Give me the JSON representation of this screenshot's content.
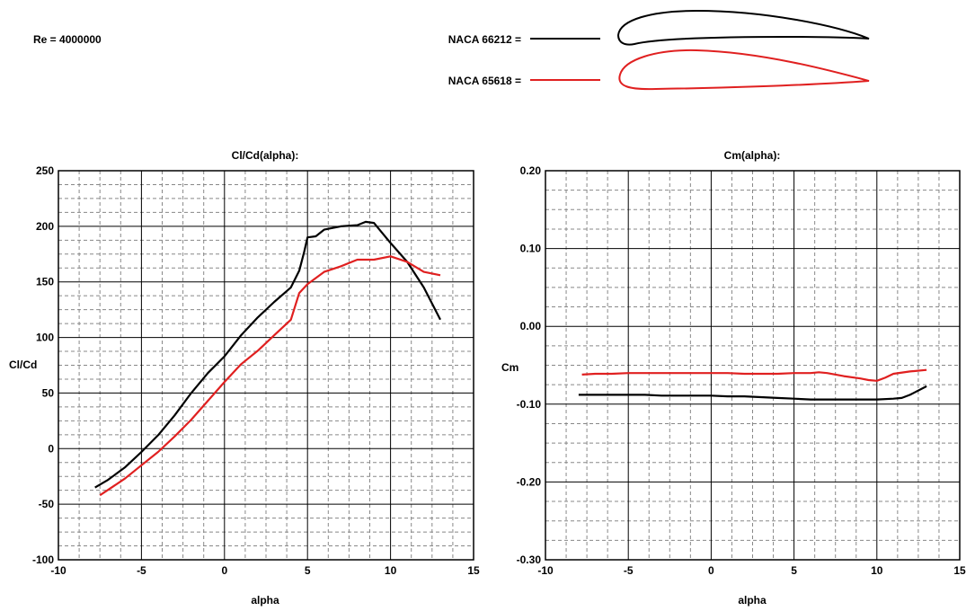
{
  "header": {
    "reynolds": "Re = 4000000",
    "legend": [
      {
        "label": "NACA 66212 =",
        "color": "#000000"
      },
      {
        "label": "NACA 65618 =",
        "color": "#e02020"
      }
    ]
  },
  "colors": {
    "grid_major": "#000000",
    "grid_minor": "#888888",
    "background": "#ffffff"
  },
  "chart_data": [
    {
      "type": "line",
      "title": "Cl/Cd(alpha):",
      "xlabel": "alpha",
      "ylabel": "Cl/Cd",
      "xlim": [
        -10,
        15
      ],
      "ylim": [
        -100,
        250
      ],
      "xticks": [
        -10,
        -5,
        0,
        5,
        10,
        15
      ],
      "xtick_labels": [
        "-10",
        "-5",
        "0",
        "5",
        "10",
        "15"
      ],
      "yticks": [
        -100,
        -50,
        0,
        50,
        100,
        150,
        200,
        250
      ],
      "ytick_labels": [
        "-100",
        "-50",
        "0",
        "50",
        "100",
        "150",
        "200",
        "250"
      ],
      "grid": true,
      "series": [
        {
          "name": "NACA 66212",
          "color": "#000000",
          "x": [
            -7.8,
            -7,
            -6,
            -5,
            -4,
            -3,
            -2,
            -1,
            0,
            1,
            2,
            3,
            4,
            4.5,
            4.8,
            5,
            5.5,
            6,
            7,
            8,
            8.5,
            9,
            10,
            11,
            12,
            13
          ],
          "y": [
            -35,
            -28,
            -17,
            -3,
            12,
            30,
            50,
            68,
            83,
            102,
            118,
            132,
            145,
            160,
            177,
            190,
            191,
            197,
            200,
            201,
            204,
            203,
            185,
            168,
            145,
            116
          ]
        },
        {
          "name": "NACA 65618",
          "color": "#e02020",
          "x": [
            -7.5,
            -7,
            -6,
            -5,
            -4,
            -3,
            -2,
            -1,
            0,
            1,
            2,
            3,
            4,
            4.5,
            5,
            6,
            7,
            8,
            9,
            10,
            11,
            12,
            13
          ],
          "y": [
            -42,
            -37,
            -27,
            -15,
            -3,
            11,
            26,
            43,
            60,
            76,
            88,
            102,
            116,
            140,
            148,
            159,
            164,
            170,
            170,
            173,
            168,
            159,
            156
          ]
        }
      ]
    },
    {
      "type": "line",
      "title": "Cm(alpha):",
      "xlabel": "alpha",
      "ylabel": "Cm",
      "xlim": [
        -10,
        15
      ],
      "ylim": [
        -0.3,
        0.2
      ],
      "xticks": [
        -10,
        -5,
        0,
        5,
        10,
        15
      ],
      "xtick_labels": [
        "-10",
        "-5",
        "0",
        "5",
        "10",
        "15"
      ],
      "yticks": [
        -0.3,
        -0.2,
        -0.1,
        0,
        0.1,
        0.2
      ],
      "ytick_labels": [
        "-0.30",
        "-0.20",
        "-0.10",
        "0.00",
        "0.10",
        "0.20"
      ],
      "grid": true,
      "series": [
        {
          "name": "NACA 66212",
          "color": "#000000",
          "x": [
            -8,
            -7,
            -6,
            -5,
            -4,
            -3,
            -2,
            -1,
            0,
            1,
            2,
            3,
            4,
            5,
            6,
            7,
            8,
            9,
            10,
            11,
            11.5,
            12,
            13
          ],
          "y": [
            -0.088,
            -0.088,
            -0.088,
            -0.088,
            -0.088,
            -0.089,
            -0.089,
            -0.089,
            -0.089,
            -0.09,
            -0.09,
            -0.091,
            -0.092,
            -0.093,
            -0.094,
            -0.094,
            -0.094,
            -0.094,
            -0.094,
            -0.093,
            -0.092,
            -0.088,
            -0.077
          ]
        },
        {
          "name": "NACA 65618",
          "color": "#e02020",
          "x": [
            -7.8,
            -7,
            -6,
            -5,
            -4,
            -3,
            -2,
            -1,
            0,
            1,
            2,
            3,
            4,
            5,
            6,
            6.5,
            7,
            8,
            9,
            9.5,
            10,
            10.5,
            11,
            12,
            13
          ],
          "y": [
            -0.062,
            -0.061,
            -0.061,
            -0.06,
            -0.06,
            -0.06,
            -0.06,
            -0.06,
            -0.06,
            -0.06,
            -0.061,
            -0.061,
            -0.061,
            -0.06,
            -0.06,
            -0.059,
            -0.06,
            -0.064,
            -0.067,
            -0.069,
            -0.07,
            -0.066,
            -0.061,
            -0.058,
            -0.056
          ]
        }
      ]
    }
  ]
}
